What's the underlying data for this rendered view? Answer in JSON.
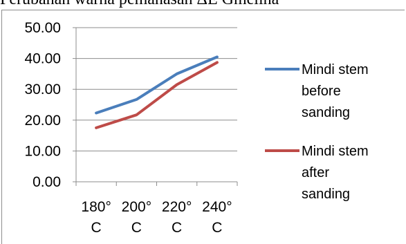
{
  "header_fragment": "Perubahan warna pemanasan ΔE Gmelina",
  "chart_data": {
    "type": "line",
    "categories": [
      "180° C",
      "200° C",
      "220° C",
      "240° C"
    ],
    "category_lines": [
      [
        "180°",
        "C"
      ],
      [
        "200°",
        "C"
      ],
      [
        "220°",
        "C"
      ],
      [
        "240°",
        "C"
      ]
    ],
    "y_ticks": [
      "0.00",
      "10.00",
      "20.00",
      "30.00",
      "40.00",
      "50.00"
    ],
    "ylim": [
      0,
      50
    ],
    "grid": true,
    "legend_position": "right",
    "series": [
      {
        "name": "Mindi stem before sanding",
        "name_lines": [
          "Mindi stem",
          "before",
          "sanding"
        ],
        "color": "#4a7ebb",
        "values": [
          22.3,
          26.7,
          35.0,
          40.5
        ]
      },
      {
        "name": "Mindi stem after sanding",
        "name_lines": [
          "Mindi stem",
          "after",
          "sanding"
        ],
        "color": "#be4b48",
        "values": [
          17.5,
          21.7,
          31.5,
          38.7
        ]
      }
    ]
  }
}
